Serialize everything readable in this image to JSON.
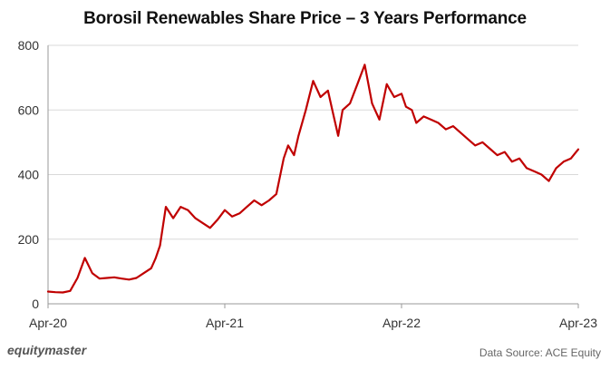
{
  "chart_data": {
    "type": "line",
    "title": "Borosil Renewables Share Price – 3 Years Performance",
    "xlabel": "",
    "ylabel": "",
    "ylim": [
      0,
      800
    ],
    "yticks": [
      0,
      200,
      400,
      600,
      800
    ],
    "x_tick_labels": [
      "Apr-20",
      "Apr-21",
      "Apr-22",
      "Apr-23"
    ],
    "grid": "horizontal",
    "line_color": "#c00000",
    "x_note": "months since Apr-20",
    "series": [
      {
        "name": "",
        "x": [
          0,
          0.5,
          1,
          1.5,
          2,
          2.5,
          3,
          3.5,
          4,
          4.5,
          5,
          5.5,
          6,
          6.5,
          7,
          7.3,
          7.6,
          8,
          8.5,
          9,
          9.5,
          10,
          10.5,
          11,
          11.5,
          12,
          12.5,
          13,
          13.5,
          14,
          14.5,
          15,
          15.5,
          16,
          16.3,
          16.7,
          17,
          17.5,
          18,
          18.5,
          19,
          19.3,
          19.7,
          20,
          20.5,
          21,
          21.5,
          22,
          22.5,
          23,
          23.5,
          24,
          24.3,
          24.7,
          25,
          25.5,
          26,
          26.5,
          27,
          27.5,
          28,
          28.5,
          29,
          29.5,
          30,
          30.5,
          31,
          31.5,
          32,
          32.5,
          33,
          33.5,
          34,
          34.5,
          35,
          35.5,
          36
        ],
        "values": [
          38,
          36,
          35,
          40,
          80,
          142,
          95,
          78,
          80,
          82,
          78,
          75,
          80,
          95,
          110,
          140,
          180,
          300,
          265,
          300,
          290,
          265,
          250,
          235,
          260,
          290,
          270,
          280,
          300,
          320,
          305,
          320,
          340,
          450,
          490,
          460,
          520,
          600,
          690,
          640,
          660,
          600,
          520,
          600,
          620,
          680,
          740,
          620,
          570,
          680,
          640,
          650,
          610,
          600,
          560,
          580,
          570,
          560,
          540,
          550,
          530,
          510,
          490,
          500,
          480,
          460,
          470,
          440,
          450,
          420,
          410,
          400,
          380,
          420,
          440,
          450,
          478
        ]
      }
    ]
  },
  "footer": {
    "brand": "equitymaster",
    "source": "Data Source: ACE Equity"
  }
}
